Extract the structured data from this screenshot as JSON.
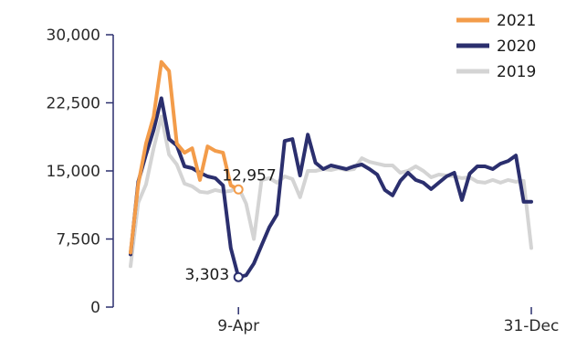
{
  "chart_data": {
    "type": "line",
    "title": "",
    "xlabel": "",
    "ylabel": "",
    "ylim": [
      0,
      30000
    ],
    "yticks": [
      {
        "value": 0,
        "label": "0"
      },
      {
        "value": 7500,
        "label": "7,500"
      },
      {
        "value": 15000,
        "label": "15,000"
      },
      {
        "value": 22500,
        "label": "22,500"
      },
      {
        "value": 30000,
        "label": "30,000"
      }
    ],
    "xlim": [
      1,
      53
    ],
    "xticks": [
      {
        "value": 15,
        "label": "9-Apr"
      },
      {
        "value": 53,
        "label": "31-Dec"
      }
    ],
    "x_unit": "week of year",
    "grid": false,
    "legend_position": "top-right",
    "series": [
      {
        "name": "2021",
        "color": "#f39c4a",
        "x": [
          1,
          2,
          3,
          4,
          5,
          6,
          7,
          8,
          9,
          10,
          11,
          12,
          13,
          14,
          15
        ],
        "values": [
          6000,
          13500,
          18000,
          21000,
          27000,
          26000,
          18000,
          17000,
          17500,
          14000,
          17700,
          17200,
          17000,
          13400,
          12957
        ]
      },
      {
        "name": "2020",
        "color": "#2b2f6e",
        "x": [
          1,
          2,
          3,
          4,
          5,
          6,
          7,
          8,
          9,
          10,
          11,
          12,
          13,
          14,
          15,
          16,
          17,
          18,
          19,
          20,
          21,
          22,
          23,
          24,
          25,
          26,
          27,
          28,
          29,
          30,
          31,
          32,
          33,
          34,
          35,
          36,
          37,
          38,
          39,
          40,
          41,
          42,
          43,
          44,
          45,
          46,
          47,
          48,
          49,
          50,
          51,
          52,
          53
        ],
        "values": [
          5800,
          13800,
          16800,
          19500,
          23000,
          18500,
          17800,
          15500,
          15300,
          14800,
          14400,
          14200,
          13400,
          6500,
          3303,
          3500,
          4800,
          6800,
          8800,
          10200,
          18300,
          18500,
          14500,
          19000,
          15900,
          15200,
          15600,
          15400,
          15200,
          15500,
          15700,
          15200,
          14600,
          12900,
          12300,
          13900,
          14800,
          14000,
          13700,
          13000,
          13700,
          14400,
          14800,
          11800,
          14700,
          15500,
          15500,
          15200,
          15800,
          16100,
          16700,
          11600,
          11600
        ]
      },
      {
        "name": "2019",
        "color": "#d4d4d4",
        "x": [
          1,
          2,
          3,
          4,
          5,
          6,
          7,
          8,
          9,
          10,
          11,
          12,
          13,
          14,
          15,
          16,
          17,
          18,
          19,
          20,
          21,
          22,
          23,
          24,
          25,
          26,
          27,
          28,
          29,
          30,
          31,
          32,
          33,
          34,
          35,
          36,
          37,
          38,
          39,
          40,
          41,
          42,
          43,
          44,
          45,
          46,
          47,
          48,
          49,
          50,
          51,
          52,
          53
        ],
        "values": [
          4500,
          11500,
          13500,
          17500,
          21000,
          16800,
          15700,
          13600,
          13300,
          12700,
          12600,
          12900,
          12700,
          12800,
          13200,
          11400,
          7500,
          14000,
          14200,
          13700,
          14400,
          14100,
          12100,
          15000,
          15000,
          15200,
          15100,
          15300,
          15100,
          15200,
          16400,
          16000,
          15800,
          15600,
          15600,
          14800,
          15000,
          15500,
          15000,
          14300,
          14600,
          14500,
          14400,
          14200,
          14300,
          13800,
          13700,
          14000,
          13700,
          14000,
          13800,
          13900,
          6500
        ]
      }
    ],
    "annotations": [
      {
        "series": "2021",
        "x": 15,
        "value": 12957,
        "label": "12,957"
      },
      {
        "series": "2020",
        "x": 15,
        "value": 3303,
        "label": "3,303"
      }
    ]
  }
}
